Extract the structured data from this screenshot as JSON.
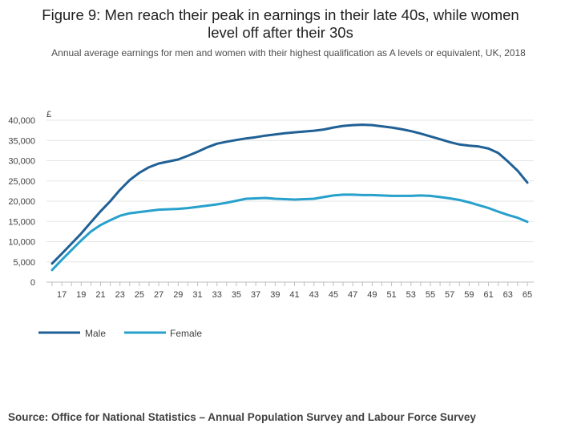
{
  "title_line1": "Figure 9: Men reach their peak in earnings in their late 40s, while women",
  "title_line2": "level off after their 30s",
  "subtitle": "Annual average earnings for men and women with their highest qualification as A levels or equivalent, UK, 2018",
  "source": "Source: Office for National Statistics – Annual Population Survey and Labour Force Survey",
  "colors": {
    "male": "#206095",
    "female": "#27a0cc",
    "grid": "#e6e6e6",
    "axis": "#bfbfbf"
  },
  "chart_data": {
    "type": "line",
    "title": "Figure 9: Men reach their peak in earnings in their late 40s, while women level off after their 30s",
    "ylabel": "£",
    "xlabel": "",
    "ylim": [
      0,
      40000
    ],
    "yticks": [
      0,
      5000,
      10000,
      15000,
      20000,
      25000,
      30000,
      35000,
      40000
    ],
    "ytick_labels": [
      "0",
      "5,000",
      "10,000",
      "15,000",
      "20,000",
      "25,000",
      "30,000",
      "35,000",
      "40,000"
    ],
    "xlim": [
      16,
      65
    ],
    "xticks": [
      17,
      19,
      21,
      23,
      25,
      27,
      29,
      31,
      33,
      35,
      37,
      39,
      41,
      43,
      45,
      47,
      49,
      51,
      53,
      55,
      57,
      59,
      61,
      63,
      65
    ],
    "legend_position": "bottom-left",
    "x": [
      16,
      17,
      18,
      19,
      20,
      21,
      22,
      23,
      24,
      25,
      26,
      27,
      28,
      29,
      30,
      31,
      32,
      33,
      34,
      35,
      36,
      37,
      38,
      39,
      40,
      41,
      42,
      43,
      44,
      45,
      46,
      47,
      48,
      49,
      50,
      51,
      52,
      53,
      54,
      55,
      56,
      57,
      58,
      59,
      60,
      61,
      62,
      63,
      64,
      65
    ],
    "series": [
      {
        "name": "Male",
        "values": [
          4600,
          7000,
          9500,
          12000,
          14800,
          17500,
          20000,
          22800,
          25200,
          27000,
          28400,
          29300,
          29800,
          30300,
          31200,
          32200,
          33300,
          34200,
          34700,
          35100,
          35500,
          35800,
          36200,
          36500,
          36800,
          37000,
          37200,
          37400,
          37700,
          38200,
          38600,
          38800,
          38900,
          38800,
          38500,
          38200,
          37800,
          37300,
          36700,
          36000,
          35300,
          34600,
          34000,
          33700,
          33500,
          33000,
          31900,
          29800,
          27500,
          24600
        ]
      },
      {
        "name": "Female",
        "values": [
          3000,
          5500,
          7900,
          10300,
          12500,
          14100,
          15300,
          16400,
          17000,
          17300,
          17600,
          17900,
          18000,
          18100,
          18300,
          18600,
          18900,
          19200,
          19600,
          20100,
          20600,
          20700,
          20800,
          20600,
          20500,
          20400,
          20500,
          20600,
          21000,
          21400,
          21600,
          21600,
          21500,
          21500,
          21400,
          21300,
          21300,
          21300,
          21400,
          21300,
          21000,
          20700,
          20300,
          19700,
          19000,
          18300,
          17400,
          16600,
          15900,
          14900
        ]
      }
    ]
  }
}
